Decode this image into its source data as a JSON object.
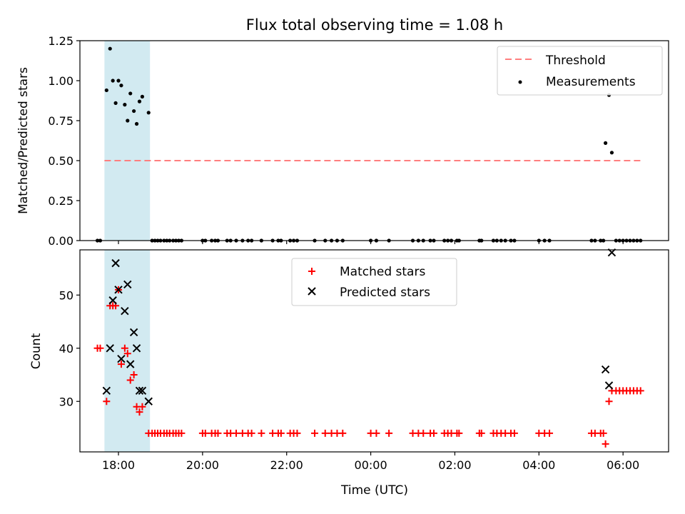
{
  "title": "Flux total observing time = 1.08 h",
  "colors": {
    "threshold": "#ff7f7f",
    "measurement": "#000000",
    "matched": "#ff0000",
    "predicted": "#000000",
    "highlight": "#add8e6"
  },
  "chart_data": [
    {
      "type": "scatter",
      "name": "ratio",
      "ylabel": "Matched/Predicted stars",
      "xlabel": "",
      "xlim": [
        "17:05",
        "07:05"
      ],
      "ylim": [
        0,
        1.25
      ],
      "yticks": [
        "0.00",
        "0.25",
        "0.50",
        "0.75",
        "1.00",
        "1.25"
      ],
      "x_ticks": [],
      "legend": {
        "position": "upper-right",
        "entries": [
          "Threshold",
          "Measurements"
        ]
      },
      "highlight_span": {
        "x0": "17:40",
        "x1": "18:45"
      },
      "threshold": {
        "label": "Threshold",
        "value": 0.5,
        "x0": "17:40",
        "x1": "06:25"
      },
      "series": [
        {
          "name": "Measurements",
          "marker": "dot",
          "points": [
            [
              "17:43",
              0.94
            ],
            [
              "17:48",
              1.2
            ],
            [
              "17:52",
              1.0
            ],
            [
              "17:56",
              0.86
            ],
            [
              "18:00",
              1.0
            ],
            [
              "18:04",
              0.97
            ],
            [
              "18:09",
              0.85
            ],
            [
              "18:13",
              0.75
            ],
            [
              "18:17",
              0.92
            ],
            [
              "18:22",
              0.81
            ],
            [
              "18:26",
              0.73
            ],
            [
              "18:30",
              0.87
            ],
            [
              "18:34",
              0.9
            ],
            [
              "18:43",
              0.8
            ],
            [
              "05:35",
              0.61
            ],
            [
              "05:40",
              0.91
            ],
            [
              "05:44",
              0.55
            ],
            [
              "17:30",
              0
            ],
            [
              "17:34",
              0
            ],
            [
              "18:48",
              0
            ],
            [
              "18:52",
              0
            ],
            [
              "18:56",
              0
            ],
            [
              "19:00",
              0
            ],
            [
              "19:05",
              0
            ],
            [
              "19:09",
              0
            ],
            [
              "19:13",
              0
            ],
            [
              "19:18",
              0
            ],
            [
              "19:22",
              0
            ],
            [
              "19:26",
              0
            ],
            [
              "19:30",
              0
            ],
            [
              "20:00",
              0
            ],
            [
              "20:04",
              0
            ],
            [
              "20:13",
              0
            ],
            [
              "20:18",
              0
            ],
            [
              "20:22",
              0
            ],
            [
              "20:35",
              0
            ],
            [
              "20:40",
              0
            ],
            [
              "20:48",
              0
            ],
            [
              "20:57",
              0
            ],
            [
              "21:05",
              0
            ],
            [
              "21:10",
              0
            ],
            [
              "21:24",
              0
            ],
            [
              "21:40",
              0
            ],
            [
              "21:48",
              0
            ],
            [
              "21:52",
              0
            ],
            [
              "22:05",
              0
            ],
            [
              "22:10",
              0
            ],
            [
              "22:15",
              0
            ],
            [
              "22:40",
              0
            ],
            [
              "22:55",
              0
            ],
            [
              "23:04",
              0
            ],
            [
              "23:12",
              0
            ],
            [
              "23:20",
              0
            ],
            [
              "00:00",
              0
            ],
            [
              "00:08",
              0
            ],
            [
              "00:26",
              0
            ],
            [
              "01:00",
              0
            ],
            [
              "01:08",
              0
            ],
            [
              "01:15",
              0
            ],
            [
              "01:25",
              0
            ],
            [
              "01:30",
              0
            ],
            [
              "01:45",
              0
            ],
            [
              "01:50",
              0
            ],
            [
              "01:55",
              0
            ],
            [
              "02:03",
              0
            ],
            [
              "02:06",
              0
            ],
            [
              "02:35",
              0
            ],
            [
              "02:38",
              0
            ],
            [
              "02:55",
              0
            ],
            [
              "03:00",
              0
            ],
            [
              "03:06",
              0
            ],
            [
              "03:12",
              0
            ],
            [
              "03:20",
              0
            ],
            [
              "03:25",
              0
            ],
            [
              "04:00",
              0
            ],
            [
              "04:08",
              0
            ],
            [
              "04:15",
              0
            ],
            [
              "05:15",
              0
            ],
            [
              "05:20",
              0
            ],
            [
              "05:28",
              0
            ],
            [
              "05:32",
              0
            ],
            [
              "05:50",
              0
            ],
            [
              "05:55",
              0
            ],
            [
              "06:00",
              0
            ],
            [
              "06:05",
              0
            ],
            [
              "06:10",
              0
            ],
            [
              "06:15",
              0
            ],
            [
              "06:20",
              0
            ],
            [
              "06:25",
              0
            ]
          ]
        }
      ]
    },
    {
      "type": "scatter",
      "name": "counts",
      "ylabel": "Count",
      "xlabel": "Time (UTC)",
      "xlim": [
        "17:05",
        "07:05"
      ],
      "ylim": [
        20.5,
        58.5
      ],
      "yticks": [
        "30",
        "40",
        "50"
      ],
      "x_ticks": [
        "18:00",
        "20:00",
        "22:00",
        "00:00",
        "02:00",
        "04:00",
        "06:00"
      ],
      "legend": {
        "position": "upper-center",
        "entries": [
          "Matched stars",
          "Predicted stars"
        ]
      },
      "highlight_span": {
        "x0": "17:40",
        "x1": "18:45"
      },
      "series": [
        {
          "name": "Matched stars",
          "marker": "plus",
          "points": [
            [
              "17:30",
              40
            ],
            [
              "17:34",
              40
            ],
            [
              "17:43",
              30
            ],
            [
              "17:48",
              48
            ],
            [
              "17:52",
              48
            ],
            [
              "17:56",
              48
            ],
            [
              "18:00",
              51
            ],
            [
              "18:04",
              37
            ],
            [
              "18:09",
              40
            ],
            [
              "18:13",
              39
            ],
            [
              "18:17",
              34
            ],
            [
              "18:22",
              35
            ],
            [
              "18:26",
              29
            ],
            [
              "18:30",
              28
            ],
            [
              "18:34",
              29
            ],
            [
              "18:43",
              24
            ],
            [
              "18:48",
              24
            ],
            [
              "18:52",
              24
            ],
            [
              "18:56",
              24
            ],
            [
              "19:00",
              24
            ],
            [
              "19:05",
              24
            ],
            [
              "19:09",
              24
            ],
            [
              "19:13",
              24
            ],
            [
              "19:18",
              24
            ],
            [
              "19:22",
              24
            ],
            [
              "19:26",
              24
            ],
            [
              "19:30",
              24
            ],
            [
              "20:00",
              24
            ],
            [
              "20:04",
              24
            ],
            [
              "20:13",
              24
            ],
            [
              "20:18",
              24
            ],
            [
              "20:22",
              24
            ],
            [
              "20:35",
              24
            ],
            [
              "20:40",
              24
            ],
            [
              "20:48",
              24
            ],
            [
              "20:57",
              24
            ],
            [
              "21:05",
              24
            ],
            [
              "21:10",
              24
            ],
            [
              "21:24",
              24
            ],
            [
              "21:40",
              24
            ],
            [
              "21:48",
              24
            ],
            [
              "21:52",
              24
            ],
            [
              "22:05",
              24
            ],
            [
              "22:10",
              24
            ],
            [
              "22:15",
              24
            ],
            [
              "22:40",
              24
            ],
            [
              "22:55",
              24
            ],
            [
              "23:04",
              24
            ],
            [
              "23:12",
              24
            ],
            [
              "23:20",
              24
            ],
            [
              "00:00",
              24
            ],
            [
              "00:08",
              24
            ],
            [
              "00:26",
              24
            ],
            [
              "01:00",
              24
            ],
            [
              "01:08",
              24
            ],
            [
              "01:15",
              24
            ],
            [
              "01:25",
              24
            ],
            [
              "01:30",
              24
            ],
            [
              "01:45",
              24
            ],
            [
              "01:50",
              24
            ],
            [
              "01:55",
              24
            ],
            [
              "02:03",
              24
            ],
            [
              "02:06",
              24
            ],
            [
              "02:35",
              24
            ],
            [
              "02:38",
              24
            ],
            [
              "02:55",
              24
            ],
            [
              "03:00",
              24
            ],
            [
              "03:06",
              24
            ],
            [
              "03:12",
              24
            ],
            [
              "03:20",
              24
            ],
            [
              "03:25",
              24
            ],
            [
              "04:00",
              24
            ],
            [
              "04:08",
              24
            ],
            [
              "04:15",
              24
            ],
            [
              "05:15",
              24
            ],
            [
              "05:20",
              24
            ],
            [
              "05:28",
              24
            ],
            [
              "05:32",
              24
            ],
            [
              "05:35",
              22
            ],
            [
              "05:40",
              30
            ],
            [
              "05:44",
              32
            ],
            [
              "05:50",
              32
            ],
            [
              "05:55",
              32
            ],
            [
              "06:00",
              32
            ],
            [
              "06:05",
              32
            ],
            [
              "06:10",
              32
            ],
            [
              "06:15",
              32
            ],
            [
              "06:20",
              32
            ],
            [
              "06:25",
              32
            ]
          ]
        },
        {
          "name": "Predicted stars",
          "marker": "x",
          "points": [
            [
              "17:43",
              32
            ],
            [
              "17:48",
              40
            ],
            [
              "17:52",
              49
            ],
            [
              "17:56",
              56
            ],
            [
              "18:00",
              51
            ],
            [
              "18:04",
              38
            ],
            [
              "18:09",
              47
            ],
            [
              "18:13",
              52
            ],
            [
              "18:17",
              37
            ],
            [
              "18:22",
              43
            ],
            [
              "18:26",
              40
            ],
            [
              "18:30",
              32
            ],
            [
              "18:34",
              32
            ],
            [
              "18:43",
              30
            ],
            [
              "05:35",
              36
            ],
            [
              "05:40",
              33
            ],
            [
              "05:44",
              58
            ]
          ]
        }
      ]
    }
  ]
}
